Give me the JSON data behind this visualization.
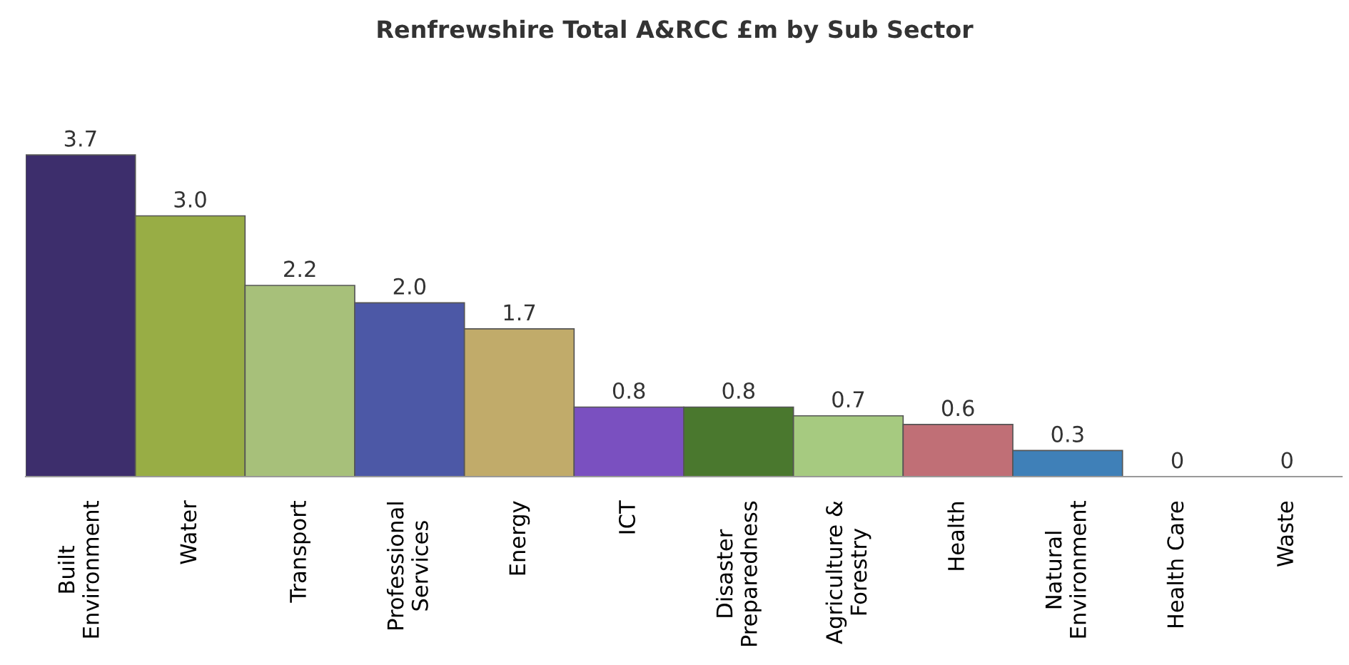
{
  "chart_data": {
    "type": "bar",
    "title": "Renfrewshire Total A&RCC £m by Sub Sector",
    "categories": [
      "Built\nEnvironment",
      "Water",
      "Transport",
      "Professional\nServices",
      "Energy",
      "ICT",
      "Disaster\nPreparedness",
      "Agriculture &\nForestry",
      "Health",
      "Natural\nEnvironment",
      "Health Care",
      "Waste"
    ],
    "values": [
      3.7,
      3.0,
      2.2,
      2.0,
      1.7,
      0.8,
      0.8,
      0.7,
      0.6,
      0.3,
      0,
      0
    ],
    "value_labels": [
      "3.7",
      "3.0",
      "2.2",
      "2.0",
      "1.7",
      "0.8",
      "0.8",
      "0.7",
      "0.6",
      "0.3",
      "0",
      "0"
    ],
    "colors": [
      "#3d2e6c",
      "#98ad45",
      "#a7c07a",
      "#4c58a6",
      "#c1ab6a",
      "#7a50c0",
      "#4a782e",
      "#a6ca80",
      "#c06f76",
      "#3f80b8",
      "#888888",
      "#888888"
    ],
    "grid": false,
    "legend": false
  }
}
